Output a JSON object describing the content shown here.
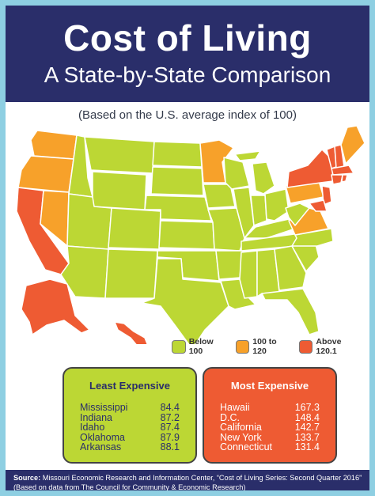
{
  "header": {
    "title": "Cost of Living",
    "subtitle": "A State-by-State Comparison"
  },
  "basis_note": "(Based on the U.S. average index of 100)",
  "colors": {
    "below_100": "#bcd734",
    "range_100_120": "#f7a12a",
    "above_120": "#ee5b33",
    "header_bg": "#2a2e6a",
    "frame": "#8ecfe2"
  },
  "legend": {
    "below": "Below 100",
    "mid": "100 to 120",
    "above": "Above 120.1"
  },
  "least_expensive": {
    "title": "Least Expensive",
    "rows": [
      {
        "state": "Mississippi",
        "value": "84.4"
      },
      {
        "state": "Indiana",
        "value": "87.2"
      },
      {
        "state": "Idaho",
        "value": "87.4"
      },
      {
        "state": "Oklahoma",
        "value": "87.9"
      },
      {
        "state": "Arkansas",
        "value": "88.1"
      }
    ]
  },
  "most_expensive": {
    "title": "Most Expensive",
    "rows": [
      {
        "state": "Hawaii",
        "value": "167.3"
      },
      {
        "state": "D.C.",
        "value": "148.4"
      },
      {
        "state": "California",
        "value": "142.7"
      },
      {
        "state": "New York",
        "value": "133.7"
      },
      {
        "state": "Connecticut",
        "value": "131.4"
      }
    ]
  },
  "source": {
    "label": "Source:",
    "text": " Missouri Economic Research and Information Center, “Cost of Living Series: Second Quarter 2016” (Based on data from The Council for Community & Economic Research)"
  }
}
